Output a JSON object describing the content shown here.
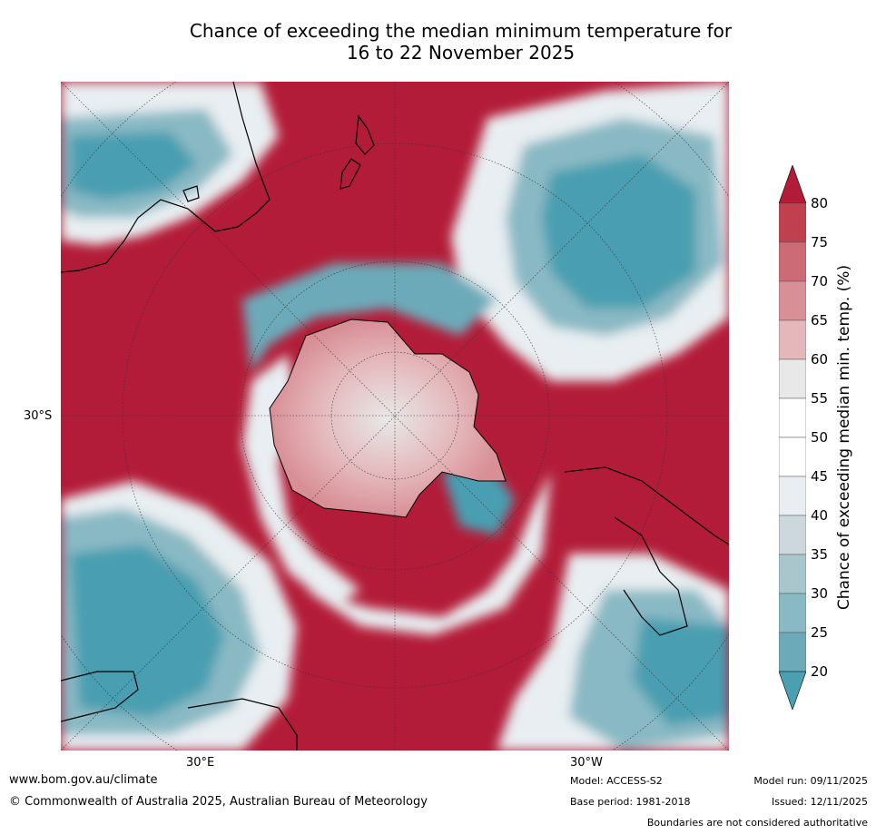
{
  "title_line1": "Chance of exceeding the median minimum temperature for",
  "title_line2": "16 to 22 November 2025",
  "map": {
    "projection": "south-polar",
    "lat_label": "30°S",
    "lon_labels": [
      "30°E",
      "30°W"
    ],
    "colors": {
      "strong_warm": "#b31c38",
      "warm_75": "#c0404f",
      "warm_70": "#cc6b75",
      "warm_65": "#d88f96",
      "warm_60": "#e4b7ba",
      "neutral_55": "#e8e8e8",
      "neutral_50": "#ffffff",
      "cool_45": "#e8eef1",
      "cool_40": "#cdd8dc",
      "cool_35": "#a9c6cd",
      "cool_30": "#89b9c4",
      "cool_25": "#6caab9",
      "cool_20": "#4a9fb1"
    }
  },
  "colorbar": {
    "title": "Chance of exceeding median min. temp. (%)",
    "ticks": [
      "80",
      "75",
      "70",
      "65",
      "60",
      "55",
      "50",
      "45",
      "40",
      "35",
      "30",
      "25",
      "20"
    ],
    "bands": [
      {
        "range": [
          75,
          80
        ],
        "color": "#c0404f"
      },
      {
        "range": [
          70,
          75
        ],
        "color": "#cc6b75"
      },
      {
        "range": [
          65,
          70
        ],
        "color": "#d88f96"
      },
      {
        "range": [
          60,
          65
        ],
        "color": "#e4b7ba"
      },
      {
        "range": [
          55,
          60
        ],
        "color": "#e8e8e8"
      },
      {
        "range": [
          50,
          55
        ],
        "color": "#ffffff"
      },
      {
        "range": [
          45,
          50
        ],
        "color": "#ffffff"
      },
      {
        "range": [
          40,
          45
        ],
        "color": "#e8eef1"
      },
      {
        "range": [
          35,
          40
        ],
        "color": "#cdd8dc"
      },
      {
        "range": [
          30,
          35
        ],
        "color": "#a9c6cd"
      },
      {
        "range": [
          25,
          30
        ],
        "color": "#89b9c4"
      },
      {
        "range": [
          20,
          25
        ],
        "color": "#6caab9"
      }
    ],
    "over_color": "#b31c38",
    "under_color": "#4a9fb1"
  },
  "footer": {
    "website": "www.bom.gov.au/climate",
    "copyright": "© Commonwealth of Australia 2025, Australian Bureau of Meteorology",
    "model": "Model: ACCESS-S2",
    "base_period": "Base period: 1981-2018",
    "model_run": "Model run: 09/11/2025",
    "issued": "Issued: 12/11/2025",
    "disclaimer": "Boundaries are not considered authoritative"
  }
}
